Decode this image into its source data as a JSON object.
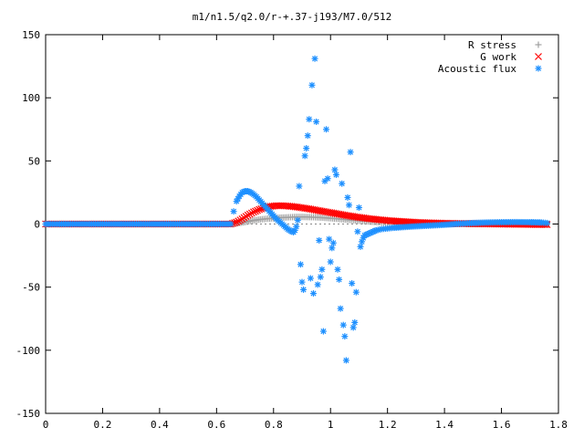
{
  "chart_data": {
    "type": "scatter",
    "title": "m1/n1.5/q2.0/r-+.37-j193/M7.0/512",
    "xlabel": "",
    "ylabel": "",
    "xlim": [
      0,
      1.8
    ],
    "ylim": [
      -150,
      150
    ],
    "x_ticks": [
      "0",
      "0.2",
      "0.4",
      "0.6",
      "0.8",
      "1",
      "1.2",
      "1.4",
      "1.6",
      "1.8"
    ],
    "y_ticks": [
      "150",
      "100",
      "50",
      "0",
      "-50",
      "-100",
      "-150"
    ],
    "grid": false,
    "legend_position": "top-right",
    "series": [
      {
        "name": "R stress",
        "marker": "+",
        "color": "#a0a0a0",
        "points": [
          [
            0.0,
            0
          ],
          [
            0.1,
            0
          ],
          [
            0.2,
            0
          ],
          [
            0.3,
            0
          ],
          [
            0.4,
            0
          ],
          [
            0.5,
            0
          ],
          [
            0.6,
            0
          ],
          [
            0.65,
            0
          ],
          [
            0.67,
            0.5
          ],
          [
            0.7,
            1.5
          ],
          [
            0.72,
            2.5
          ],
          [
            0.74,
            3.2
          ],
          [
            0.76,
            3.8
          ],
          [
            0.78,
            4.2
          ],
          [
            0.8,
            4.6
          ],
          [
            0.82,
            5.0
          ],
          [
            0.84,
            5.2
          ],
          [
            0.86,
            5.4
          ],
          [
            0.88,
            5.6
          ],
          [
            0.9,
            5.6
          ],
          [
            0.92,
            5.5
          ],
          [
            0.94,
            5.4
          ],
          [
            0.96,
            5.2
          ],
          [
            0.98,
            4.9
          ],
          [
            1.0,
            4.6
          ],
          [
            1.02,
            4.2
          ],
          [
            1.04,
            3.8
          ],
          [
            1.06,
            3.4
          ],
          [
            1.08,
            3.0
          ],
          [
            1.1,
            2.6
          ],
          [
            1.12,
            2.2
          ],
          [
            1.14,
            1.9
          ],
          [
            1.16,
            1.6
          ],
          [
            1.18,
            1.3
          ],
          [
            1.2,
            1.1
          ],
          [
            1.25,
            0.7
          ],
          [
            1.3,
            0.4
          ],
          [
            1.35,
            0.2
          ],
          [
            1.4,
            0.1
          ],
          [
            1.5,
            0.0
          ],
          [
            1.6,
            -0.1
          ],
          [
            1.7,
            -0.1
          ],
          [
            1.76,
            -0.1
          ]
        ]
      },
      {
        "name": "G work",
        "marker": "x",
        "color": "#ff0000",
        "points": [
          [
            0.0,
            0
          ],
          [
            0.1,
            0
          ],
          [
            0.2,
            0
          ],
          [
            0.3,
            0
          ],
          [
            0.4,
            0
          ],
          [
            0.5,
            0
          ],
          [
            0.6,
            0
          ],
          [
            0.65,
            0
          ],
          [
            0.67,
            1.5
          ],
          [
            0.69,
            4
          ],
          [
            0.71,
            7
          ],
          [
            0.73,
            9.5
          ],
          [
            0.75,
            11.5
          ],
          [
            0.77,
            13
          ],
          [
            0.79,
            14
          ],
          [
            0.81,
            14.5
          ],
          [
            0.83,
            14.5
          ],
          [
            0.85,
            14.2
          ],
          [
            0.87,
            13.8
          ],
          [
            0.89,
            13.2
          ],
          [
            0.91,
            12.5
          ],
          [
            0.93,
            11.8
          ],
          [
            0.95,
            11.0
          ],
          [
            0.97,
            10.2
          ],
          [
            0.99,
            9.4
          ],
          [
            1.01,
            8.6
          ],
          [
            1.03,
            7.8
          ],
          [
            1.05,
            7.0
          ],
          [
            1.07,
            6.3
          ],
          [
            1.09,
            5.6
          ],
          [
            1.11,
            5.0
          ],
          [
            1.13,
            4.4
          ],
          [
            1.15,
            3.9
          ],
          [
            1.17,
            3.4
          ],
          [
            1.19,
            3.0
          ],
          [
            1.21,
            2.6
          ],
          [
            1.24,
            2.1
          ],
          [
            1.27,
            1.7
          ],
          [
            1.3,
            1.3
          ],
          [
            1.35,
            0.9
          ],
          [
            1.4,
            0.6
          ],
          [
            1.45,
            0.4
          ],
          [
            1.5,
            0.2
          ],
          [
            1.55,
            0.1
          ],
          [
            1.6,
            0.0
          ],
          [
            1.65,
            -0.2
          ],
          [
            1.7,
            -0.3
          ],
          [
            1.76,
            -0.4
          ]
        ]
      },
      {
        "name": "Acoustic flux",
        "marker": "*",
        "color": "#1e90ff",
        "points": [
          [
            0.0,
            0
          ],
          [
            0.05,
            0
          ],
          [
            0.1,
            0
          ],
          [
            0.15,
            0
          ],
          [
            0.2,
            0
          ],
          [
            0.25,
            0
          ],
          [
            0.3,
            0
          ],
          [
            0.35,
            0
          ],
          [
            0.4,
            0
          ],
          [
            0.45,
            0
          ],
          [
            0.5,
            0
          ],
          [
            0.55,
            0
          ],
          [
            0.6,
            0
          ],
          [
            0.65,
            0
          ],
          [
            0.66,
            10
          ],
          [
            0.67,
            18
          ],
          [
            0.68,
            22
          ],
          [
            0.69,
            25
          ],
          [
            0.7,
            26
          ],
          [
            0.71,
            26
          ],
          [
            0.72,
            25
          ],
          [
            0.73,
            23.5
          ],
          [
            0.74,
            21.5
          ],
          [
            0.75,
            19
          ],
          [
            0.76,
            16.5
          ],
          [
            0.77,
            14
          ],
          [
            0.78,
            11.5
          ],
          [
            0.79,
            9
          ],
          [
            0.8,
            6.5
          ],
          [
            0.81,
            4
          ],
          [
            0.82,
            2
          ],
          [
            0.83,
            0
          ],
          [
            0.84,
            -2
          ],
          [
            0.85,
            -4
          ],
          [
            0.86,
            -5.5
          ],
          [
            0.87,
            -6.5
          ],
          [
            0.875,
            -5
          ],
          [
            0.88,
            -2
          ],
          [
            0.885,
            3
          ],
          [
            0.89,
            30
          ],
          [
            0.895,
            -32
          ],
          [
            0.9,
            -46
          ],
          [
            0.905,
            -52
          ],
          [
            0.91,
            54
          ],
          [
            0.915,
            60
          ],
          [
            0.92,
            70
          ],
          [
            0.925,
            83
          ],
          [
            0.93,
            -43
          ],
          [
            0.935,
            110
          ],
          [
            0.94,
            -55
          ],
          [
            0.945,
            131
          ],
          [
            0.95,
            81
          ],
          [
            0.955,
            -48
          ],
          [
            0.96,
            -13
          ],
          [
            0.965,
            -42
          ],
          [
            0.97,
            -36
          ],
          [
            0.975,
            -85
          ],
          [
            0.98,
            34
          ],
          [
            0.985,
            75
          ],
          [
            0.99,
            36
          ],
          [
            0.995,
            -12
          ],
          [
            1.0,
            -30
          ],
          [
            1.005,
            -19
          ],
          [
            1.01,
            -15
          ],
          [
            1.015,
            43
          ],
          [
            1.02,
            39
          ],
          [
            1.025,
            -36
          ],
          [
            1.03,
            -44
          ],
          [
            1.035,
            -67
          ],
          [
            1.04,
            32
          ],
          [
            1.045,
            -80
          ],
          [
            1.05,
            -89
          ],
          [
            1.055,
            -108
          ],
          [
            1.06,
            21
          ],
          [
            1.065,
            15
          ],
          [
            1.07,
            57
          ],
          [
            1.075,
            -47
          ],
          [
            1.08,
            -82
          ],
          [
            1.085,
            -78
          ],
          [
            1.09,
            -54
          ],
          [
            1.095,
            -6
          ],
          [
            1.1,
            13
          ],
          [
            1.105,
            -18
          ],
          [
            1.11,
            -14
          ],
          [
            1.115,
            -11
          ],
          [
            1.12,
            -9
          ],
          [
            1.13,
            -8
          ],
          [
            1.14,
            -7
          ],
          [
            1.15,
            -6
          ],
          [
            1.16,
            -5
          ],
          [
            1.18,
            -4
          ],
          [
            1.2,
            -3.5
          ],
          [
            1.22,
            -3
          ],
          [
            1.25,
            -2.5
          ],
          [
            1.3,
            -1.8
          ],
          [
            1.35,
            -1.2
          ],
          [
            1.4,
            -0.6
          ],
          [
            1.45,
            0.2
          ],
          [
            1.5,
            0.8
          ],
          [
            1.55,
            1.2
          ],
          [
            1.6,
            1.4
          ],
          [
            1.65,
            1.5
          ],
          [
            1.7,
            1.4
          ],
          [
            1.74,
            1.2
          ],
          [
            1.76,
            0.8
          ]
        ]
      }
    ]
  }
}
